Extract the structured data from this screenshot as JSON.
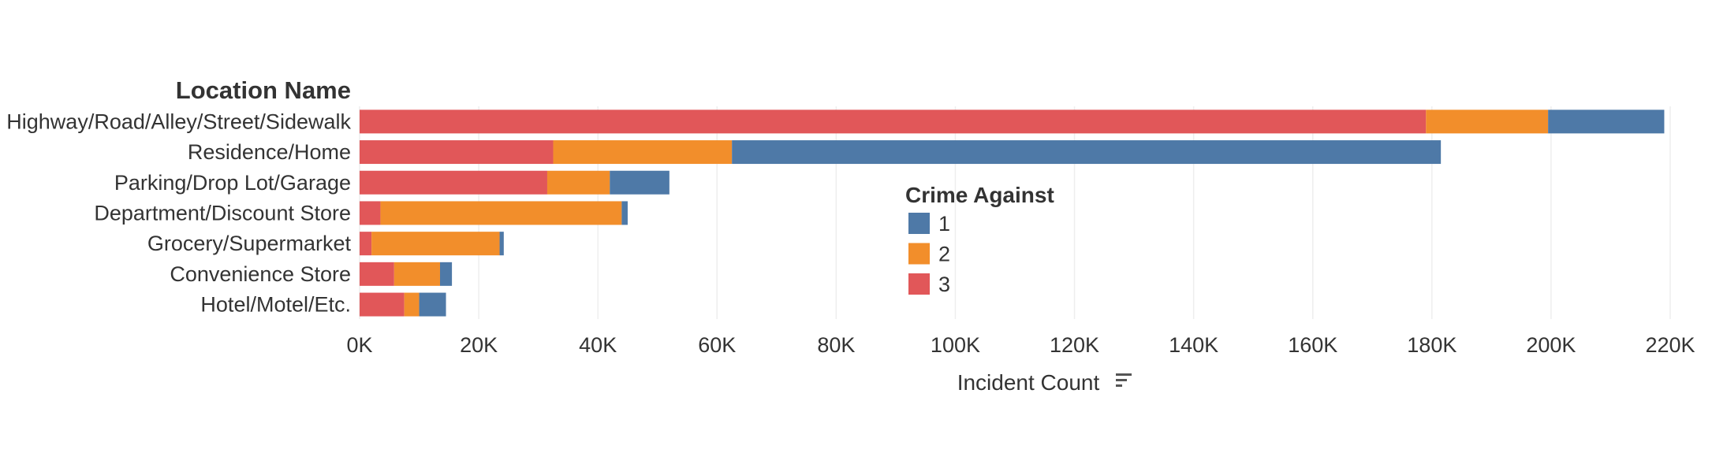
{
  "chart_data": {
    "type": "bar",
    "orientation": "horizontal",
    "stacked": true,
    "row_header": "Location Name",
    "xlabel": "Incident Count",
    "sort_icon": "sort-descending-icon",
    "xlim": [
      0,
      220000
    ],
    "x_ticks": [
      0,
      20000,
      40000,
      60000,
      80000,
      100000,
      120000,
      140000,
      160000,
      180000,
      200000,
      220000
    ],
    "x_tick_labels": [
      "0K",
      "20K",
      "40K",
      "60K",
      "80K",
      "100K",
      "120K",
      "140K",
      "160K",
      "180K",
      "200K",
      "220K"
    ],
    "grid": true,
    "legend_title": "Crime Against",
    "legend_placement": "center",
    "categories": [
      "Highway/Road/Alley/Street/Sidewalk",
      "Residence/Home",
      "Parking/Drop Lot/Garage",
      "Department/Discount Store",
      "Grocery/Supermarket",
      "Convenience Store",
      "Hotel/Motel/Etc."
    ],
    "stack_order": [
      "3",
      "2",
      "1"
    ],
    "series": [
      {
        "name": "1",
        "color": "#4e79a7",
        "values": [
          19500,
          119000,
          10000,
          1000,
          700,
          2000,
          4500
        ]
      },
      {
        "name": "2",
        "color": "#f28e2b",
        "values": [
          20500,
          30000,
          10500,
          40500,
          21500,
          7700,
          2500
        ]
      },
      {
        "name": "3",
        "color": "#e15759",
        "values": [
          179000,
          32500,
          31500,
          3500,
          2000,
          5800,
          7500
        ]
      }
    ]
  }
}
